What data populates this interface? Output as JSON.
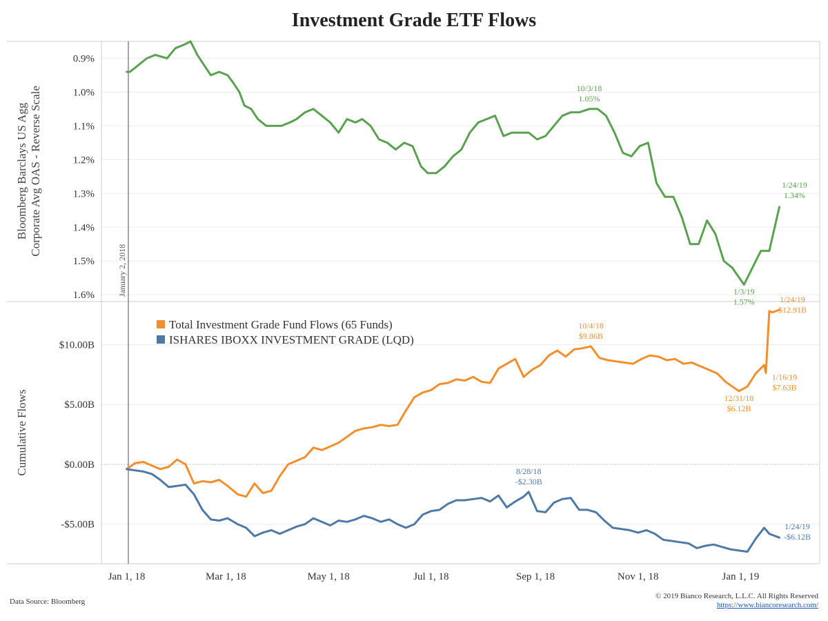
{
  "title": "Investment Grade ETF Flows",
  "footer": {
    "source": "Data Source: Bloomberg",
    "copyright": "© 2019 Bianco Research, L.L.C. All Rights Reserved",
    "url": "https://www.biancoresearch.com/"
  },
  "colors": {
    "oas": "#59a14f",
    "total_flows": "#f28e2b",
    "lqd": "#4e79a7",
    "reference_line": "#888888"
  },
  "reference_line_label": "January 2, 2018",
  "chart_data": [
    {
      "type": "line",
      "ylabel": [
        "Bloomberg Barclays US Agg",
        "Corporate Avg OAS - Reverse Scale"
      ],
      "y_reverse": true,
      "ylim": [
        0.85,
        1.62
      ],
      "yticks": [
        0.9,
        1.0,
        1.1,
        1.2,
        1.3,
        1.4,
        1.5,
        1.6
      ],
      "ytick_labels": [
        "0.9%",
        "1.0%",
        "1.1%",
        "1.2%",
        "1.3%",
        "1.4%",
        "1.5%",
        "1.6%"
      ],
      "series": [
        {
          "key": "oas",
          "x": [
            "2018-01-01",
            "2018-01-03",
            "2018-01-08",
            "2018-01-13",
            "2018-01-18",
            "2018-01-25",
            "2018-01-30",
            "2018-02-04",
            "2018-02-08",
            "2018-02-12",
            "2018-02-16",
            "2018-02-20",
            "2018-02-25",
            "2018-03-02",
            "2018-03-05",
            "2018-03-09",
            "2018-03-12",
            "2018-03-16",
            "2018-03-20",
            "2018-03-25",
            "2018-03-28",
            "2018-04-03",
            "2018-04-08",
            "2018-04-12",
            "2018-04-17",
            "2018-04-22",
            "2018-04-27",
            "2018-05-02",
            "2018-05-07",
            "2018-05-12",
            "2018-05-17",
            "2018-05-21",
            "2018-05-26",
            "2018-05-31",
            "2018-06-05",
            "2018-06-10",
            "2018-06-15",
            "2018-06-20",
            "2018-06-25",
            "2018-06-29",
            "2018-07-04",
            "2018-07-09",
            "2018-07-14",
            "2018-07-19",
            "2018-07-24",
            "2018-07-29",
            "2018-08-03",
            "2018-08-08",
            "2018-08-13",
            "2018-08-18",
            "2018-08-23",
            "2018-08-28",
            "2018-09-02",
            "2018-09-07",
            "2018-09-12",
            "2018-09-17",
            "2018-09-22",
            "2018-09-27",
            "2018-10-03",
            "2018-10-08",
            "2018-10-13",
            "2018-10-18",
            "2018-10-23",
            "2018-10-28",
            "2018-11-02",
            "2018-11-07",
            "2018-11-12",
            "2018-11-17",
            "2018-11-22",
            "2018-11-27",
            "2018-12-02",
            "2018-12-07",
            "2018-12-12",
            "2018-12-17",
            "2018-12-22",
            "2018-12-27",
            "2019-01-03",
            "2019-01-08",
            "2019-01-13",
            "2019-01-18",
            "2019-01-24"
          ],
          "values": [
            0.94,
            0.94,
            0.92,
            0.9,
            0.89,
            0.9,
            0.87,
            0.86,
            0.85,
            0.89,
            0.92,
            0.95,
            0.94,
            0.95,
            0.97,
            1.0,
            1.04,
            1.05,
            1.08,
            1.1,
            1.1,
            1.1,
            1.09,
            1.08,
            1.06,
            1.05,
            1.07,
            1.09,
            1.12,
            1.08,
            1.09,
            1.08,
            1.1,
            1.14,
            1.15,
            1.17,
            1.15,
            1.16,
            1.22,
            1.24,
            1.24,
            1.22,
            1.19,
            1.17,
            1.12,
            1.09,
            1.08,
            1.07,
            1.13,
            1.12,
            1.12,
            1.12,
            1.14,
            1.13,
            1.1,
            1.07,
            1.06,
            1.06,
            1.05,
            1.05,
            1.07,
            1.12,
            1.18,
            1.19,
            1.16,
            1.15,
            1.27,
            1.31,
            1.31,
            1.37,
            1.45,
            1.45,
            1.38,
            1.42,
            1.5,
            1.52,
            1.57,
            1.52,
            1.47,
            1.47,
            1.34
          ]
        }
      ],
      "annotations": [
        {
          "x": "2018-10-03",
          "label": "10/3/18",
          "value_label": "1.05%",
          "value": 1.05,
          "pos": "above"
        },
        {
          "x": "2019-01-03",
          "label": "1/3/19",
          "value_label": "1.57%",
          "value": 1.57,
          "pos": "below"
        },
        {
          "x": "2019-01-24",
          "label": "1/24/19",
          "value_label": "1.34%",
          "value": 1.34,
          "pos": "right"
        }
      ]
    },
    {
      "type": "line",
      "ylabel": "Cumulative Flows",
      "ylim": [
        -8.3,
        13.6
      ],
      "yticks": [
        -5,
        0,
        5,
        10
      ],
      "ytick_labels": [
        "-$5.00B",
        "$0.00B",
        "$5.00B",
        "$10.00B"
      ],
      "xticks": [
        "2018-01-01",
        "2018-03-01",
        "2018-05-01",
        "2018-07-01",
        "2018-09-01",
        "2018-11-01",
        "2019-01-01"
      ],
      "xtick_labels": [
        "Jan 1, 18",
        "Mar 1, 18",
        "May 1, 18",
        "Jul 1, 18",
        "Sep 1, 18",
        "Nov 1, 18",
        "Jan 1, 19"
      ],
      "legend": [
        {
          "key": "total_flows",
          "label": "Total Investment Grade Fund Flows (65 Funds)"
        },
        {
          "key": "lqd",
          "label": "ISHARES IBOXX INVESTMENT GRADE (LQD)"
        }
      ],
      "series": [
        {
          "key": "total_flows",
          "x": [
            "2018-01-01",
            "2018-01-06",
            "2018-01-11",
            "2018-01-16",
            "2018-01-21",
            "2018-01-26",
            "2018-01-31",
            "2018-02-05",
            "2018-02-10",
            "2018-02-15",
            "2018-02-20",
            "2018-02-25",
            "2018-03-02",
            "2018-03-08",
            "2018-03-13",
            "2018-03-18",
            "2018-03-23",
            "2018-03-28",
            "2018-04-02",
            "2018-04-07",
            "2018-04-12",
            "2018-04-17",
            "2018-04-22",
            "2018-04-27",
            "2018-05-02",
            "2018-05-07",
            "2018-05-12",
            "2018-05-17",
            "2018-05-22",
            "2018-05-27",
            "2018-06-01",
            "2018-06-06",
            "2018-06-11",
            "2018-06-16",
            "2018-06-21",
            "2018-06-26",
            "2018-07-01",
            "2018-07-06",
            "2018-07-11",
            "2018-07-16",
            "2018-07-21",
            "2018-07-26",
            "2018-07-31",
            "2018-08-05",
            "2018-08-10",
            "2018-08-15",
            "2018-08-20",
            "2018-08-25",
            "2018-08-30",
            "2018-09-04",
            "2018-09-09",
            "2018-09-14",
            "2018-09-19",
            "2018-09-24",
            "2018-09-29",
            "2018-10-04",
            "2018-10-09",
            "2018-10-14",
            "2018-10-19",
            "2018-10-24",
            "2018-10-29",
            "2018-11-03",
            "2018-11-08",
            "2018-11-13",
            "2018-11-18",
            "2018-11-23",
            "2018-11-28",
            "2018-12-03",
            "2018-12-08",
            "2018-12-13",
            "2018-12-18",
            "2018-12-23",
            "2018-12-31",
            "2019-01-05",
            "2019-01-10",
            "2019-01-15",
            "2019-01-16",
            "2019-01-18",
            "2019-01-20",
            "2019-01-24"
          ],
          "values": [
            -0.4,
            0.1,
            0.2,
            -0.1,
            -0.4,
            -0.2,
            0.4,
            0.0,
            -1.6,
            -1.4,
            -1.5,
            -1.3,
            -1.8,
            -2.5,
            -2.7,
            -1.6,
            -2.4,
            -2.2,
            -1.0,
            0.0,
            0.3,
            0.6,
            1.4,
            1.2,
            1.5,
            1.8,
            2.3,
            2.8,
            3.0,
            3.1,
            3.3,
            3.2,
            3.3,
            4.5,
            5.6,
            6.0,
            6.2,
            6.7,
            6.8,
            7.1,
            7.0,
            7.3,
            6.9,
            6.8,
            8.0,
            8.4,
            8.8,
            7.3,
            7.9,
            8.3,
            9.1,
            9.5,
            9.0,
            9.6,
            9.7,
            9.86,
            8.9,
            8.7,
            8.6,
            8.5,
            8.4,
            8.8,
            9.1,
            9.0,
            8.7,
            8.8,
            8.4,
            8.5,
            8.2,
            7.9,
            7.6,
            6.9,
            6.12,
            6.5,
            7.6,
            8.3,
            7.63,
            12.8,
            12.7,
            12.91
          ]
        },
        {
          "key": "lqd",
          "x": [
            "2018-01-01",
            "2018-01-06",
            "2018-01-11",
            "2018-01-16",
            "2018-01-21",
            "2018-01-26",
            "2018-01-31",
            "2018-02-05",
            "2018-02-10",
            "2018-02-15",
            "2018-02-20",
            "2018-02-25",
            "2018-03-02",
            "2018-03-08",
            "2018-03-13",
            "2018-03-18",
            "2018-03-23",
            "2018-03-28",
            "2018-04-02",
            "2018-04-07",
            "2018-04-12",
            "2018-04-17",
            "2018-04-22",
            "2018-04-27",
            "2018-05-02",
            "2018-05-07",
            "2018-05-12",
            "2018-05-17",
            "2018-05-22",
            "2018-05-27",
            "2018-06-01",
            "2018-06-06",
            "2018-06-11",
            "2018-06-16",
            "2018-06-21",
            "2018-06-26",
            "2018-07-01",
            "2018-07-06",
            "2018-07-11",
            "2018-07-16",
            "2018-07-21",
            "2018-07-26",
            "2018-07-31",
            "2018-08-05",
            "2018-08-10",
            "2018-08-15",
            "2018-08-20",
            "2018-08-25",
            "2018-08-28",
            "2018-09-02",
            "2018-09-07",
            "2018-09-12",
            "2018-09-17",
            "2018-09-22",
            "2018-09-27",
            "2018-10-02",
            "2018-10-07",
            "2018-10-12",
            "2018-10-17",
            "2018-10-22",
            "2018-10-27",
            "2018-11-01",
            "2018-11-06",
            "2018-11-11",
            "2018-11-16",
            "2018-11-21",
            "2018-11-26",
            "2018-12-01",
            "2018-12-06",
            "2018-12-11",
            "2018-12-16",
            "2018-12-21",
            "2018-12-26",
            "2018-12-31",
            "2019-01-05",
            "2019-01-10",
            "2019-01-15",
            "2019-01-18",
            "2019-01-24"
          ],
          "values": [
            -0.4,
            -0.5,
            -0.6,
            -0.8,
            -1.3,
            -1.9,
            -1.8,
            -1.7,
            -2.5,
            -3.8,
            -4.6,
            -4.7,
            -4.5,
            -5.0,
            -5.3,
            -6.0,
            -5.7,
            -5.5,
            -5.8,
            -5.5,
            -5.2,
            -5.0,
            -4.5,
            -4.8,
            -5.1,
            -4.7,
            -4.8,
            -4.6,
            -4.3,
            -4.5,
            -4.8,
            -4.6,
            -5.0,
            -5.3,
            -5.0,
            -4.2,
            -3.9,
            -3.8,
            -3.3,
            -3.0,
            -3.0,
            -2.9,
            -2.8,
            -3.1,
            -2.6,
            -3.6,
            -3.1,
            -2.7,
            -2.3,
            -3.9,
            -4.0,
            -3.2,
            -2.9,
            -2.8,
            -3.8,
            -3.8,
            -4.0,
            -4.7,
            -5.3,
            -5.4,
            -5.5,
            -5.7,
            -5.5,
            -5.8,
            -6.3,
            -6.4,
            -6.5,
            -6.6,
            -7.0,
            -6.8,
            -6.7,
            -6.9,
            -7.1,
            -7.2,
            -7.3,
            -6.2,
            -5.3,
            -5.8,
            -6.12
          ]
        }
      ],
      "annotations": [
        {
          "series": "total_flows",
          "x": "2018-10-04",
          "label": "10/4/18",
          "value_label": "$9.86B",
          "value": 9.86,
          "pos": "above"
        },
        {
          "series": "total_flows",
          "x": "2018-12-31",
          "label": "12/31/18",
          "value_label": "$6.12B",
          "value": 6.12,
          "pos": "below"
        },
        {
          "series": "total_flows",
          "x": "2019-01-16",
          "label": "1/16/19",
          "value_label": "$7.63B",
          "value": 7.63,
          "pos": "right-below"
        },
        {
          "series": "total_flows",
          "x": "2019-01-24",
          "label": "1/24/19",
          "value_label": "$12.91B",
          "value": 12.91,
          "pos": "right-above"
        },
        {
          "series": "lqd",
          "x": "2018-08-28",
          "label": "8/28/18",
          "value_label": "-$2.30B",
          "value": -2.3,
          "pos": "above"
        },
        {
          "series": "lqd",
          "x": "2019-01-24",
          "label": "1/24/19",
          "value_label": "-$6.12B",
          "value": -6.12,
          "pos": "right"
        }
      ]
    }
  ]
}
